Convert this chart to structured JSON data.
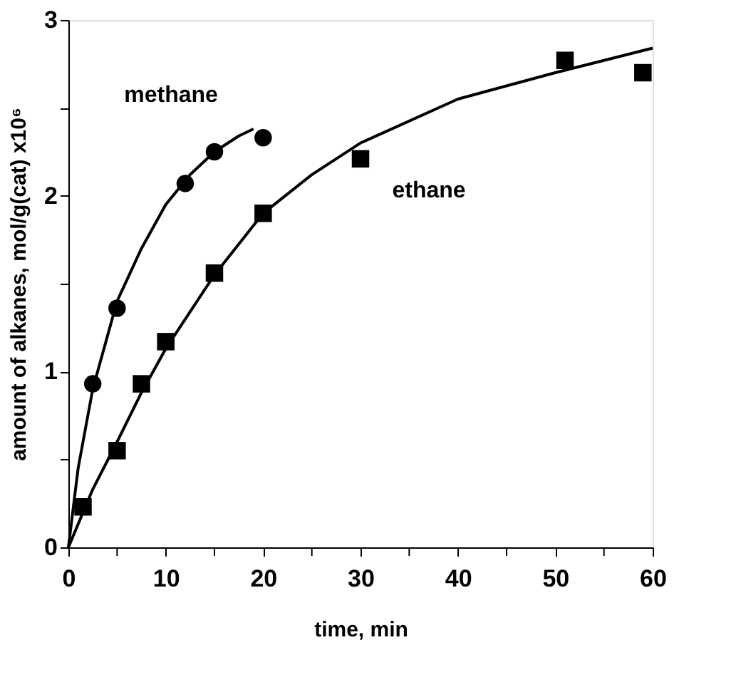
{
  "chart_data": {
    "type": "scatter",
    "xlabel": "time, min",
    "ylabel": "amount of alkanes, mol/g(cat) x10⁶",
    "xlim": [
      0,
      60
    ],
    "xticks": [
      0,
      {
        "value": 5,
        "label": null
      },
      10,
      {
        "value": 15,
        "label": null
      },
      20,
      {
        "value": 25,
        "label": null
      },
      30,
      {
        "value": 35,
        "label": null
      },
      40,
      {
        "value": 45,
        "label": null
      },
      50,
      {
        "value": 55,
        "label": null
      },
      60
    ],
    "ylim": [
      0,
      3
    ],
    "yticks": [
      0,
      {
        "value": 0.5,
        "label": null
      },
      1,
      {
        "value": 1.5,
        "label": null
      },
      2,
      {
        "value": 2.5,
        "label": null
      },
      3
    ],
    "grid": false,
    "series": [
      {
        "name": "methane",
        "marker": "circle",
        "color": "#000000",
        "x": [
          2.5,
          5,
          12,
          15,
          20
        ],
        "values": [
          0.93,
          1.36,
          2.07,
          2.25,
          2.33
        ]
      },
      {
        "name": "ethane",
        "marker": "square",
        "color": "#000000",
        "x": [
          1.5,
          5,
          7.5,
          10,
          15,
          20,
          30,
          51,
          59
        ],
        "values": [
          0.23,
          0.55,
          0.93,
          1.17,
          1.56,
          1.9,
          2.21,
          2.77,
          2.7
        ]
      },
      {
        "type": "line",
        "line_style": "solid",
        "color": "#000000",
        "x": [
          0,
          1,
          2.5,
          5,
          7.5,
          10,
          12.5,
          15,
          17.5,
          19
        ],
        "values": [
          0,
          0.45,
          0.9,
          1.4,
          1.7,
          1.95,
          2.12,
          2.25,
          2.34,
          2.38
        ]
      },
      {
        "type": "line",
        "line_style": "solid",
        "color": "#000000",
        "x": [
          0,
          2.5,
          5,
          7.5,
          10,
          15,
          20,
          25,
          30,
          40,
          50,
          60
        ],
        "values": [
          0,
          0.33,
          0.6,
          0.88,
          1.13,
          1.55,
          1.9,
          2.12,
          2.3,
          2.55,
          2.7,
          2.84
        ]
      }
    ]
  }
}
